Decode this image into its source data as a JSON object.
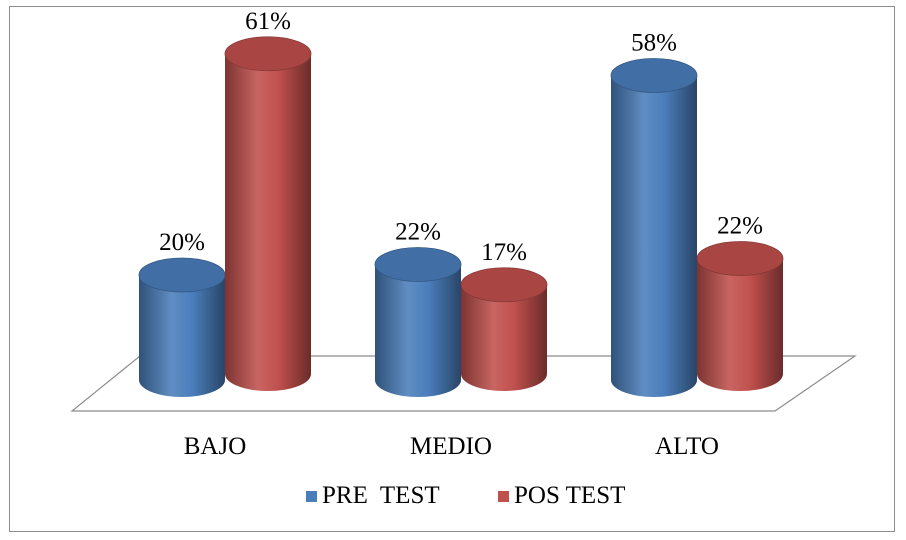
{
  "chart_data": {
    "type": "bar",
    "style": "3d-cylinder",
    "categories": [
      "BAJO",
      "MEDIO",
      "ALTO"
    ],
    "series": [
      {
        "name": "PRE  TEST",
        "values": [
          20,
          22,
          58
        ],
        "labels": [
          "20%",
          "22%",
          "58%"
        ],
        "color": "#4a7ebb"
      },
      {
        "name": "POS TEST",
        "values": [
          61,
          17,
          22
        ],
        "labels": [
          "61%",
          "17%",
          "22%"
        ],
        "color": "#c0504d"
      }
    ],
    "unit": "%",
    "legend_position": "bottom",
    "grid": false
  }
}
